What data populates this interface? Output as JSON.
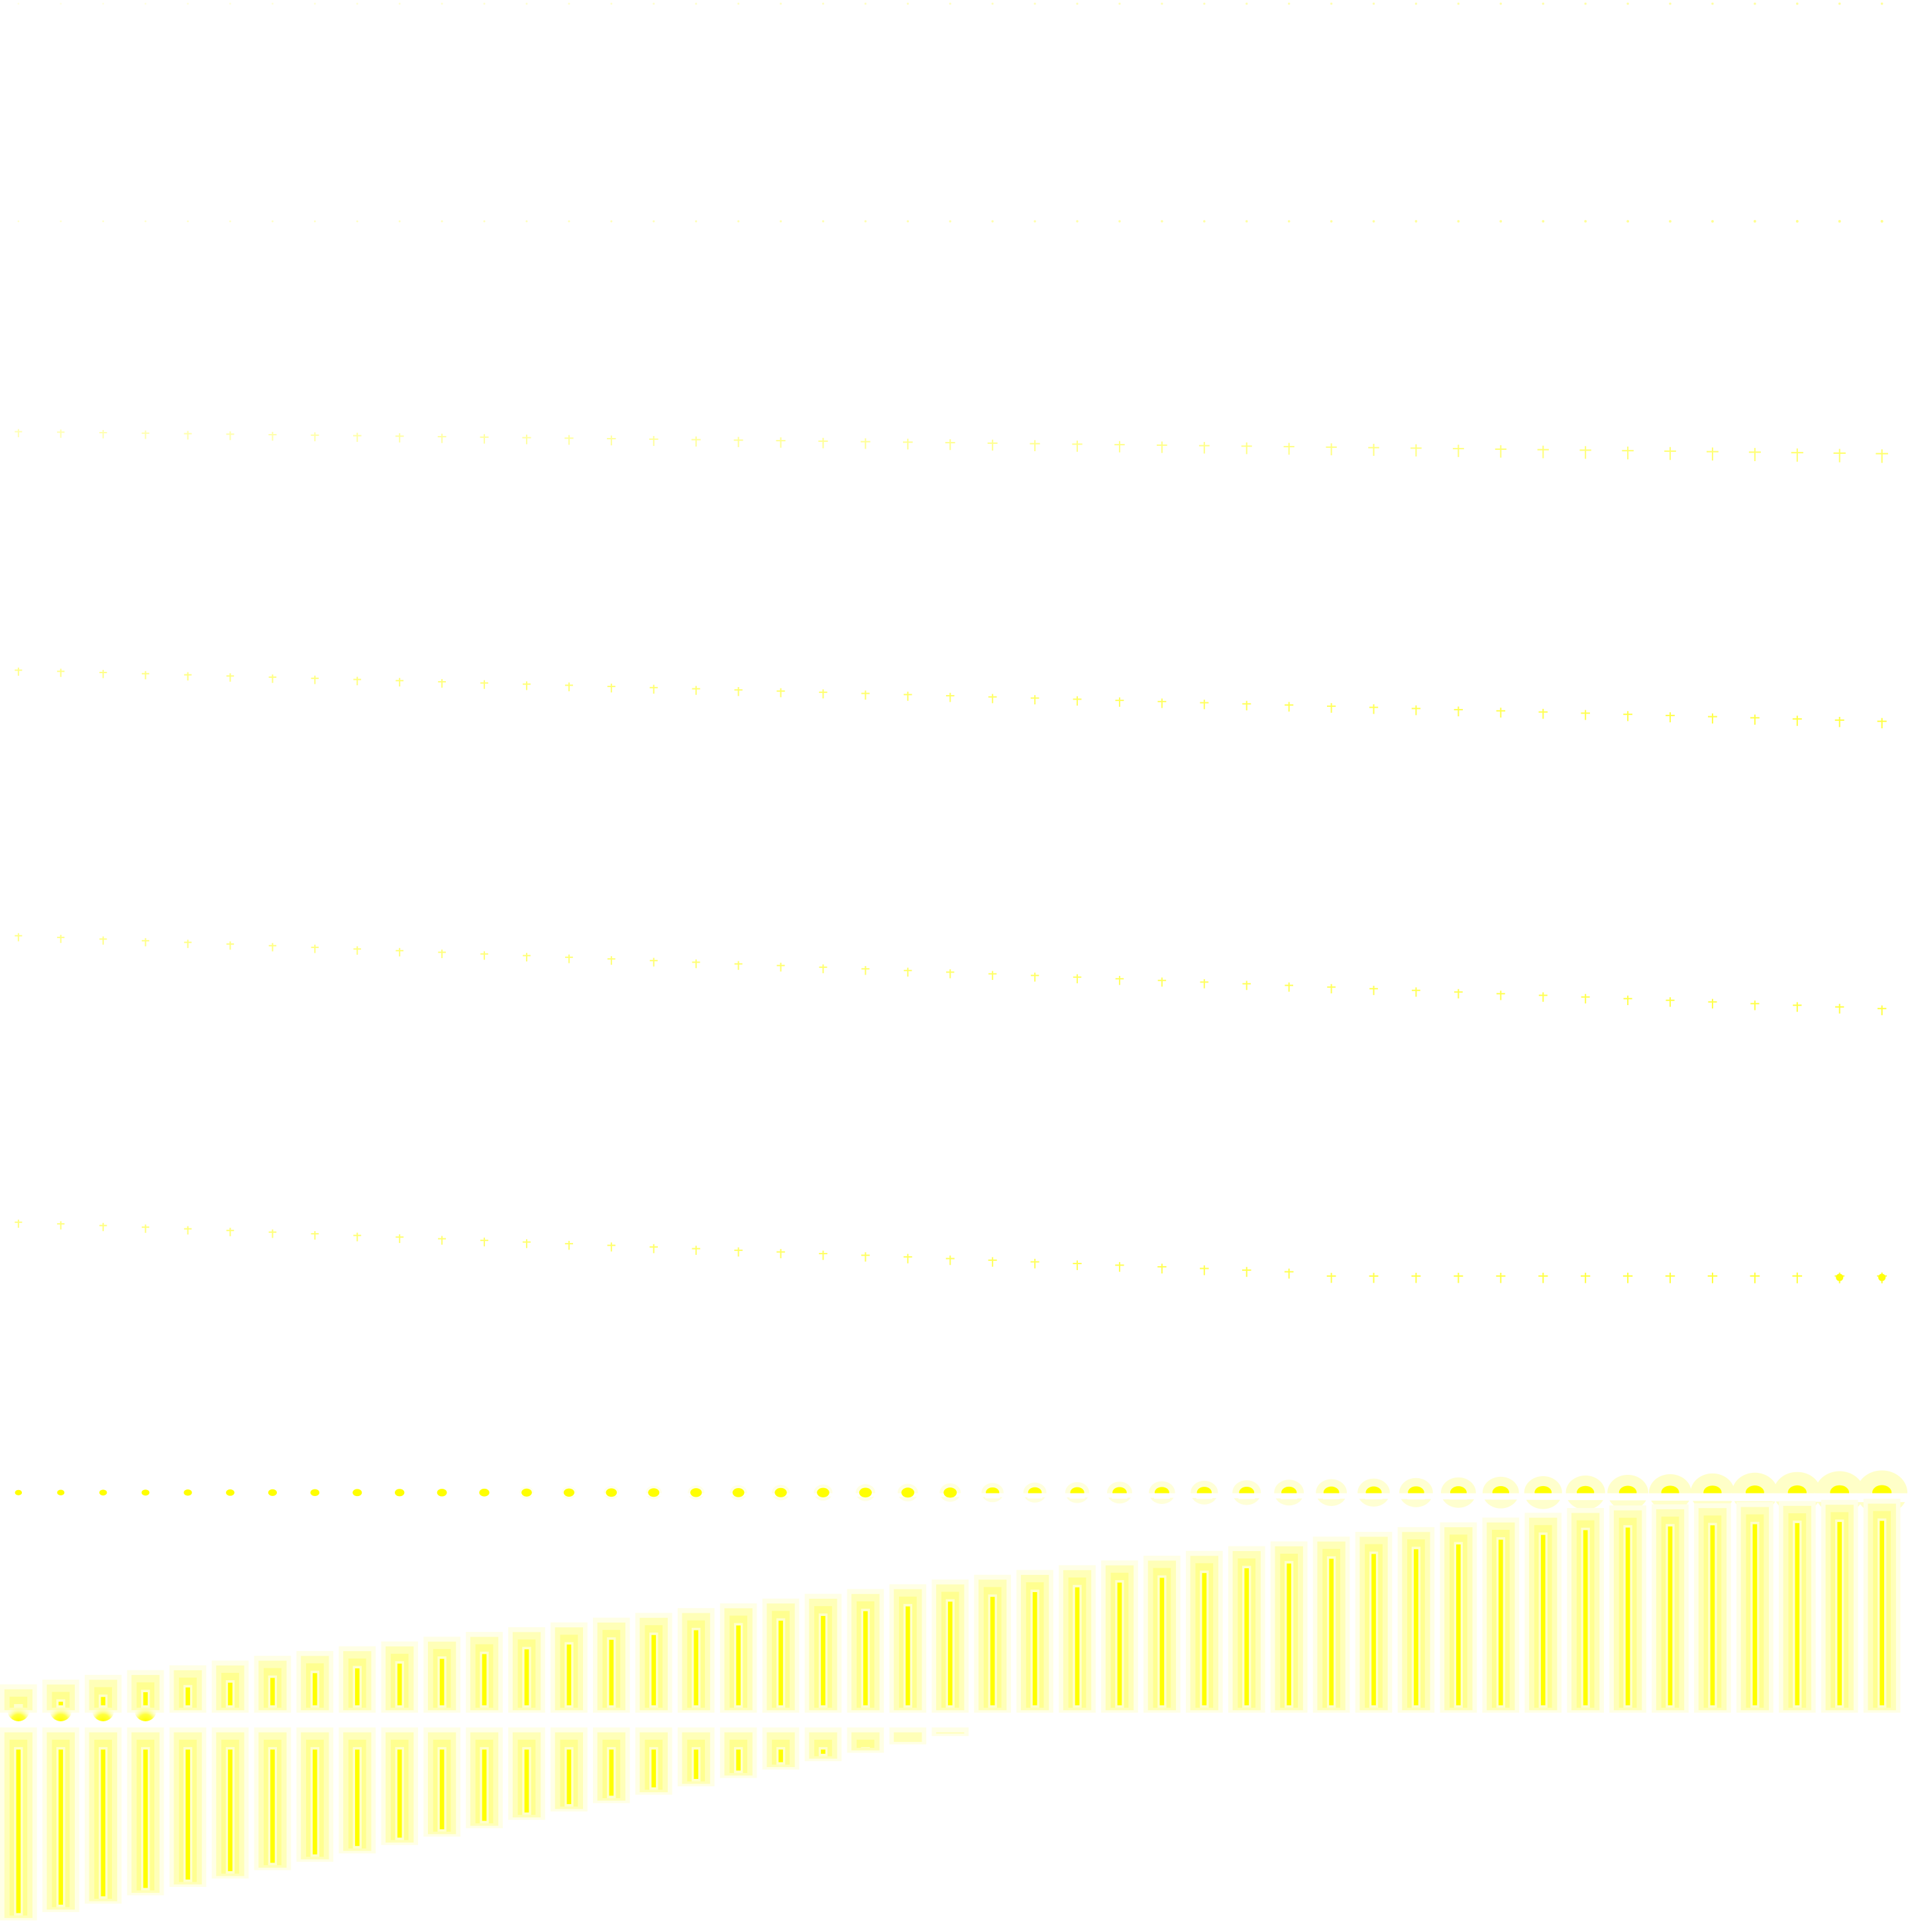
{
  "canvas": {
    "background": "#ffffff",
    "accent": "#ffff00",
    "glow": "#ffffb0"
  },
  "pattern": {
    "columns": 45,
    "marker_rows": [
      {
        "name": "row-1",
        "glyph": "dot",
        "intensity": 0.15,
        "growth": 0.2
      },
      {
        "name": "row-2",
        "glyph": "dot",
        "intensity": 0.25,
        "growth": 0.3
      },
      {
        "name": "row-3",
        "glyph": "cross",
        "intensity": 0.35,
        "growth": 1.0
      },
      {
        "name": "row-4",
        "glyph": "cross",
        "intensity": 0.55,
        "growth": 0.4
      },
      {
        "name": "row-5",
        "glyph": "cross",
        "intensity": 0.55,
        "growth": 0.3
      },
      {
        "name": "row-6",
        "glyph": "cross",
        "intensity": 0.6,
        "growth": 0.5
      }
    ],
    "glow_row": {
      "name": "dot-row",
      "glyph": "glowing-dot"
    },
    "bar_bands": [
      {
        "name": "upper-bar-band",
        "trend": "rising"
      },
      {
        "name": "lower-bar-band",
        "trend": "falling"
      }
    ]
  }
}
